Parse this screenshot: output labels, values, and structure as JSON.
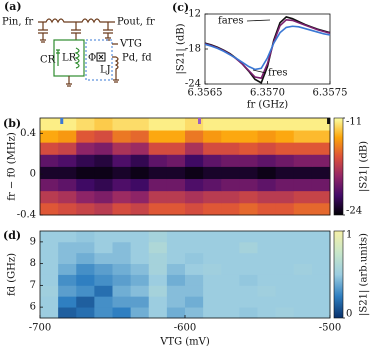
{
  "circuit": {
    "panel_label": "(a)",
    "labels": [
      "Pin, fr",
      "Pout, fr",
      "VTG",
      "Pd, fd",
      "CR",
      "LR",
      "Φ",
      "LJ"
    ]
  },
  "chart_data": [
    {
      "type": "line",
      "panel_label": "(c)",
      "xlabel": "fr (GHz)",
      "ylabel": "|S21| (dB)",
      "x": [
        6.3565,
        6.35655,
        6.3566,
        6.35665,
        6.3567,
        6.35675,
        6.3568,
        6.35685,
        6.3569,
        6.35695,
        6.357,
        6.35705,
        6.3571,
        6.35715,
        6.3572,
        6.35725,
        6.3573,
        6.35735,
        6.3574,
        6.35745,
        6.3575
      ],
      "series": [
        {
          "color": "#111111",
          "values": [
            -17.0,
            -17.3,
            -17.7,
            -18.2,
            -18.8,
            -19.6,
            -20.6,
            -21.8,
            -23.2,
            -23.8,
            -21.0,
            -16.5,
            -13.5,
            -12.5,
            -12.8,
            -13.3,
            -13.8,
            -14.2,
            -14.6,
            -14.9,
            -15.2
          ]
        },
        {
          "color": "#7a1f6e",
          "values": [
            -17.1,
            -17.4,
            -17.8,
            -18.3,
            -18.9,
            -19.7,
            -20.6,
            -21.7,
            -22.8,
            -23.0,
            -20.5,
            -16.8,
            -14.0,
            -13.0,
            -13.1,
            -13.5,
            -13.9,
            -14.3,
            -14.7,
            -15.0,
            -15.3
          ]
        },
        {
          "color": "#3a78d4",
          "values": [
            -17.2,
            -17.5,
            -17.9,
            -18.4,
            -19.0,
            -19.6,
            -20.3,
            -21.0,
            -21.5,
            -21.3,
            -19.5,
            -17.0,
            -15.2,
            -14.3,
            -14.1,
            -14.2,
            -14.5,
            -14.8,
            -15.1,
            -15.4,
            -15.6
          ]
        }
      ],
      "xlim": [
        6.3565,
        6.3575
      ],
      "ylim": [
        -24,
        -12
      ],
      "xticks": [
        {
          "value": 6.3565,
          "label": "6.3565"
        },
        {
          "value": 6.357,
          "label": "6.3570"
        },
        {
          "value": 6.3575,
          "label": "6.3575"
        }
      ],
      "yticks": [
        -12,
        -18,
        -24
      ],
      "annotations": [
        "fares",
        "fres"
      ]
    },
    {
      "type": "heatmap",
      "panel_label": "(b)",
      "ylabel": "fr − f0 (MHz)",
      "xlim": [
        -700,
        -500
      ],
      "ylim": [
        -0.4,
        0.55
      ],
      "yticks": [
        0.4,
        0,
        -0.4
      ],
      "colormap": [
        "#000004",
        "#420a68",
        "#932667",
        "#dd513a",
        "#fca50a",
        "#fcffa4"
      ],
      "clim": [
        -24,
        -11
      ],
      "cticks": [
        -11,
        -24
      ],
      "clabel": "|S21| (dB)",
      "markers": {
        "x": [
          -685,
          -590,
          -501
        ],
        "colors": [
          "#3a78d4",
          "#9b5fc0",
          "#111111"
        ]
      },
      "z": [
        [
          -16,
          -16.5,
          -17,
          -17.5,
          -16.5,
          -17,
          -16,
          -16,
          -16.5,
          -16,
          -16,
          -15.5,
          -16,
          -16,
          -15.5,
          -15.5
        ],
        [
          -17.5,
          -18,
          -19,
          -19.5,
          -18.5,
          -19,
          -17.5,
          -17.5,
          -18,
          -17.5,
          -17.5,
          -17,
          -17.5,
          -17.5,
          -17,
          -17
        ],
        [
          -20,
          -20.5,
          -21.5,
          -22,
          -21,
          -21.5,
          -20,
          -20,
          -21,
          -20.5,
          -20,
          -20,
          -20.5,
          -20,
          -20,
          -20
        ],
        [
          -23,
          -23,
          -23.5,
          -23.5,
          -23,
          -23.5,
          -23,
          -23,
          -23.5,
          -23,
          -23,
          -23,
          -23.5,
          -23,
          -23,
          -23
        ],
        [
          -20.5,
          -21,
          -22,
          -22.5,
          -21,
          -22,
          -20.5,
          -20,
          -21.5,
          -20.5,
          -20,
          -20,
          -20.5,
          -20,
          -19.5,
          -19.5
        ],
        [
          -16.5,
          -17,
          -19,
          -19.5,
          -18,
          -18.5,
          -16.5,
          -16.5,
          -18,
          -16.5,
          -16.5,
          -16,
          -16.5,
          -16,
          -16,
          -16
        ],
        [
          -13.5,
          -14,
          -16,
          -16.5,
          -15,
          -15.5,
          -13.5,
          -13.5,
          -15,
          -14,
          -13.5,
          -13.5,
          -14,
          -13.5,
          -13,
          -13
        ],
        [
          -11.5,
          -11.5,
          -12,
          -12.5,
          -12,
          -12,
          -11.5,
          -11.5,
          -12,
          -11.5,
          -11.5,
          -11.5,
          -11.5,
          -11.5,
          -11.5,
          -11.5
        ]
      ]
    },
    {
      "type": "heatmap",
      "panel_label": "(d)",
      "xlabel": "VTG (mV)",
      "ylabel": "fd (GHz)",
      "xlim": [
        -700,
        -500
      ],
      "ylim": [
        5.5,
        9.5
      ],
      "xticks": [
        -700,
        -600,
        -500
      ],
      "yticks": [
        6,
        7,
        8,
        9
      ],
      "colormap": [
        "#08306b",
        "#2f7fc1",
        "#9ccde0",
        "#c8e6c9",
        "#f5f0a8"
      ],
      "clim": [
        0,
        1
      ],
      "cticks": [
        1,
        0
      ],
      "clabel": "|S21| (arb.units)",
      "z": [
        [
          0.5,
          0.15,
          0.2,
          0.3,
          0.25,
          0.4,
          0.5,
          0.4,
          0.45,
          0.5,
          0.5,
          0.48,
          0.5,
          0.52,
          0.5,
          0.5
        ],
        [
          0.5,
          0.25,
          0.15,
          0.3,
          0.35,
          0.35,
          0.5,
          0.45,
          0.4,
          0.5,
          0.5,
          0.5,
          0.5,
          0.5,
          0.5,
          0.5
        ],
        [
          0.52,
          0.35,
          0.3,
          0.2,
          0.4,
          0.45,
          0.55,
          0.45,
          0.45,
          0.5,
          0.5,
          0.5,
          0.52,
          0.5,
          0.5,
          0.5
        ],
        [
          0.5,
          0.3,
          0.25,
          0.3,
          0.35,
          0.4,
          0.5,
          0.4,
          0.45,
          0.5,
          0.5,
          0.48,
          0.5,
          0.5,
          0.5,
          0.5
        ],
        [
          0.5,
          0.4,
          0.3,
          0.35,
          0.4,
          0.45,
          0.55,
          0.45,
          0.5,
          0.52,
          0.5,
          0.5,
          0.5,
          0.5,
          0.52,
          0.5
        ],
        [
          0.5,
          0.45,
          0.4,
          0.45,
          0.45,
          0.5,
          0.55,
          0.5,
          0.48,
          0.5,
          0.5,
          0.5,
          0.5,
          0.5,
          0.5,
          0.5
        ],
        [
          0.5,
          0.45,
          0.45,
          0.5,
          0.45,
          0.5,
          0.6,
          0.5,
          0.5,
          0.5,
          0.5,
          0.55,
          0.5,
          0.5,
          0.5,
          0.5
        ],
        [
          0.5,
          0.5,
          0.48,
          0.5,
          0.5,
          0.5,
          0.55,
          0.5,
          0.5,
          0.5,
          0.5,
          0.5,
          0.5,
          0.5,
          0.5,
          0.5
        ]
      ]
    }
  ]
}
